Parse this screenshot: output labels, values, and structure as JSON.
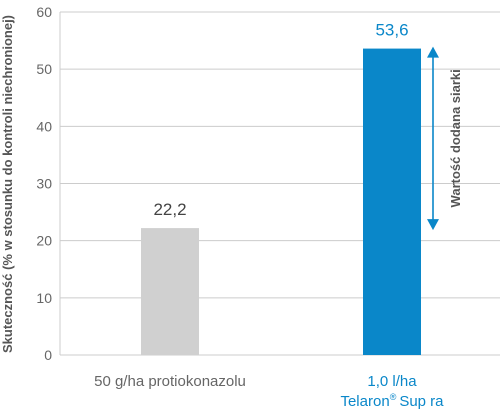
{
  "chart_data": {
    "type": "bar",
    "categories": [
      "50 g/ha protiokonazolu",
      "1,0 l/ha"
    ],
    "category_sublabels": [
      "",
      "Telaron® Supra"
    ],
    "category_sublabel_parts": {
      "pre": "Tela",
      "sup": "ron",
      "reg": "®",
      "post": "Sup ra"
    },
    "values": [
      22.2,
      53.6
    ],
    "value_labels": [
      "22,2",
      "53,6"
    ],
    "ylabel": "Skuteczność (% w stosunku do kontroli niechronionej)",
    "ylim": [
      0,
      60
    ],
    "yticks": [
      0,
      10,
      20,
      30,
      40,
      50,
      60
    ],
    "grid": true,
    "annotation": "Wartość dodana siarki",
    "annotation_range": [
      22.2,
      53.6
    ],
    "colors": {
      "bars": [
        "#d0d0d0",
        "#0a87c9"
      ],
      "category_text": [
        "#666666",
        "#0a87c9"
      ],
      "value_label_text": [
        "#444444",
        "#0a87c9"
      ],
      "annotation_arrow": "#0a87c9",
      "grid": "#cccccc"
    }
  }
}
